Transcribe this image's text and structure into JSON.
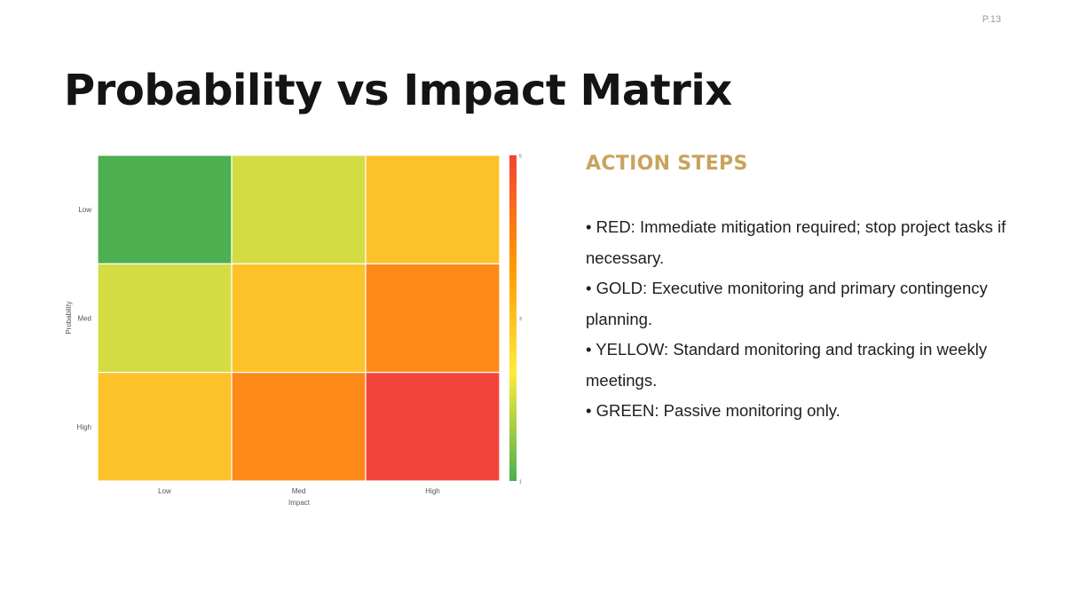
{
  "page_number": "P.13",
  "title": "Probability vs Impact Matrix",
  "action_steps": {
    "heading": "ACTION STEPS",
    "items": [
      "• RED: Immediate mitigation required; stop project tasks if necessary.",
      "• GOLD: Executive monitoring and primary contingency planning.",
      "• YELLOW: Standard monitoring and tracking in weekly meetings.",
      "• GREEN: Passive monitoring only."
    ]
  },
  "chart_data": {
    "type": "heatmap",
    "xlabel": "Impact",
    "ylabel": "Probability",
    "x_categories": [
      "Low",
      "Med",
      "High"
    ],
    "y_categories": [
      "Low",
      "Med",
      "High"
    ],
    "values": [
      [
        1,
        2,
        3
      ],
      [
        2,
        3,
        4
      ],
      [
        3,
        4,
        5
      ]
    ],
    "colorbar": {
      "range": [
        1,
        5
      ],
      "ticks": [
        "1",
        "3",
        "5"
      ],
      "colors": {
        "1": "#4caf50",
        "2": "#d4dc44",
        "3": "#fdc12a",
        "4": "#fd8a18",
        "5": "#f4433a"
      },
      "gradient": [
        "#4caf50",
        "#ffeb3b",
        "#ff9800",
        "#f44336"
      ]
    },
    "grid": false,
    "legend": "colorbar-right"
  }
}
